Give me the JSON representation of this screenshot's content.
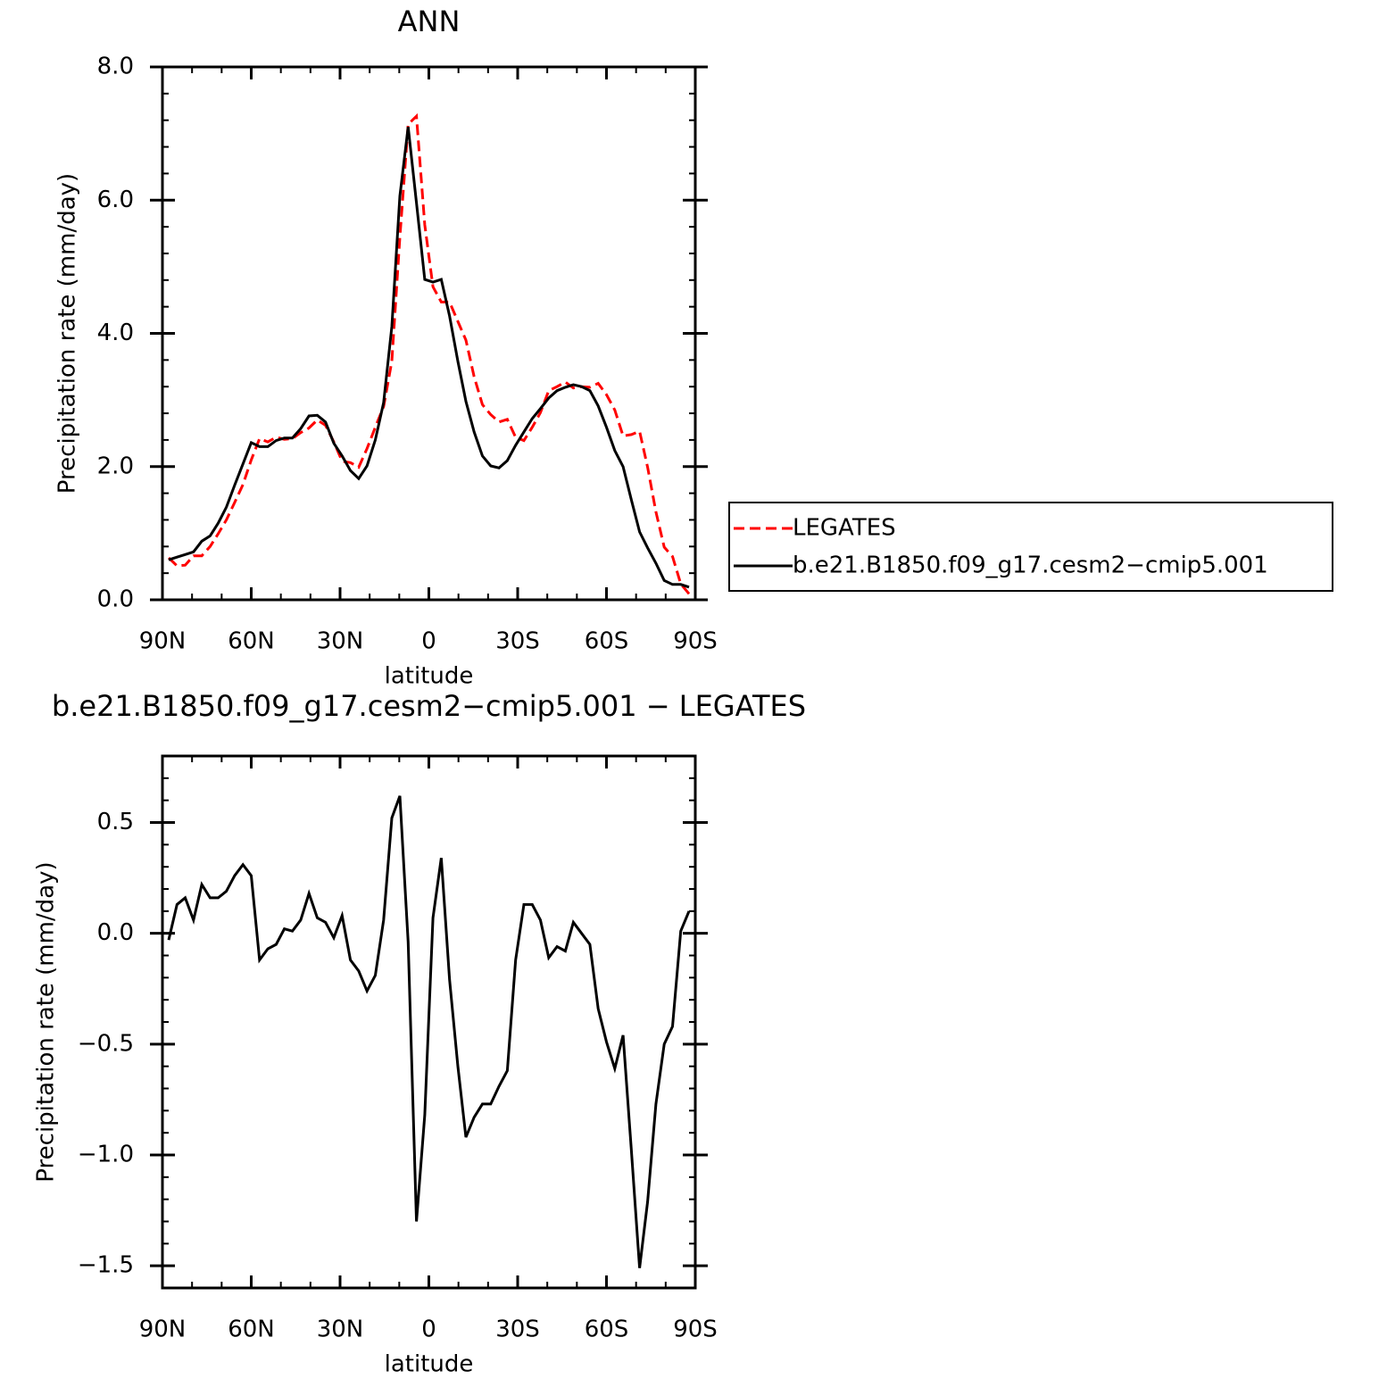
{
  "chart_data": [
    {
      "type": "line",
      "title": "ANN",
      "x_label": "latitude",
      "y_label": "Precipitation rate (mm/day)",
      "x": [
        87.9,
        85.1,
        82.3,
        79.5,
        76.7,
        73.9,
        71.2,
        68.4,
        65.6,
        62.8,
        60.0,
        57.2,
        54.4,
        51.6,
        48.8,
        46.1,
        43.3,
        40.5,
        37.7,
        34.9,
        32.1,
        29.3,
        26.5,
        23.7,
        20.9,
        18.1,
        15.3,
        12.5,
        9.8,
        7.0,
        4.2,
        1.4,
        -1.4,
        -4.2,
        -7.0,
        -9.8,
        -12.5,
        -15.3,
        -18.1,
        -20.9,
        -23.7,
        -26.5,
        -29.3,
        -32.1,
        -34.9,
        -37.7,
        -40.5,
        -43.3,
        -46.1,
        -48.8,
        -51.6,
        -54.4,
        -57.2,
        -60.0,
        -62.8,
        -65.6,
        -68.4,
        -71.2,
        -73.9,
        -76.7,
        -79.5,
        -82.3,
        -85.1,
        -87.9
      ],
      "xlim": [
        90,
        -90
      ],
      "xticks": [
        {
          "value": 90,
          "label": "90N"
        },
        {
          "value": 60,
          "label": "60N"
        },
        {
          "value": 30,
          "label": "30N"
        },
        0,
        {
          "value": -30,
          "label": "30S"
        },
        {
          "value": -60,
          "label": "60S"
        },
        {
          "value": -90,
          "label": "90S"
        }
      ],
      "ylim": [
        0,
        8
      ],
      "yticks": [
        {
          "value": 0,
          "label": "0.0"
        },
        {
          "value": 2,
          "label": "2.0"
        },
        {
          "value": 4,
          "label": "4.0"
        },
        {
          "value": 6,
          "label": "6.0"
        },
        {
          "value": 8,
          "label": "8.0"
        }
      ],
      "legend": "right",
      "series": [
        {
          "name": "LEGATES",
          "color": "#ff0000",
          "linestyle": "dashed",
          "values": [
            0.63,
            0.51,
            0.52,
            0.66,
            0.66,
            0.8,
            0.99,
            1.2,
            1.46,
            1.73,
            2.1,
            2.42,
            2.37,
            2.44,
            2.41,
            2.42,
            2.51,
            2.58,
            2.7,
            2.62,
            2.37,
            2.08,
            2.06,
            1.99,
            2.27,
            2.59,
            2.9,
            3.58,
            5.44,
            7.14,
            7.26,
            5.63,
            4.7,
            4.47,
            4.47,
            4.18,
            3.9,
            3.35,
            2.93,
            2.78,
            2.67,
            2.71,
            2.44,
            2.39,
            2.59,
            2.81,
            3.14,
            3.2,
            3.27,
            3.18,
            3.2,
            3.19,
            3.25,
            3.08,
            2.85,
            2.46,
            2.48,
            2.53,
            1.99,
            1.32,
            0.79,
            0.65,
            0.24,
            0.09
          ]
        },
        {
          "name": "b.e21.B1850.f09_g17.cesm2−cmip5.001",
          "color": "#000000",
          "linestyle": "solid",
          "values": [
            0.6,
            0.64,
            0.68,
            0.72,
            0.88,
            0.96,
            1.15,
            1.39,
            1.72,
            2.04,
            2.36,
            2.3,
            2.3,
            2.39,
            2.43,
            2.43,
            2.57,
            2.76,
            2.77,
            2.67,
            2.35,
            2.16,
            1.94,
            1.82,
            2.01,
            2.4,
            2.96,
            4.1,
            6.06,
            7.1,
            5.96,
            4.81,
            4.77,
            4.81,
            4.26,
            3.58,
            2.98,
            2.52,
            2.16,
            2.01,
            1.98,
            2.09,
            2.32,
            2.52,
            2.72,
            2.87,
            3.03,
            3.14,
            3.19,
            3.23,
            3.2,
            3.14,
            2.91,
            2.59,
            2.24,
            2.0,
            1.5,
            1.02,
            0.78,
            0.55,
            0.29,
            0.23,
            0.23,
            0.19
          ]
        }
      ]
    },
    {
      "type": "line",
      "title": "b.e21.B1850.f09_g17.cesm2−cmip5.001  −  LEGATES",
      "x_label": "latitude",
      "y_label": "Precipitation rate (mm/day)",
      "x": [
        87.9,
        85.1,
        82.3,
        79.5,
        76.7,
        73.9,
        71.2,
        68.4,
        65.6,
        62.8,
        60.0,
        57.2,
        54.4,
        51.6,
        48.8,
        46.1,
        43.3,
        40.5,
        37.7,
        34.9,
        32.1,
        29.3,
        26.5,
        23.7,
        20.9,
        18.1,
        15.3,
        12.5,
        9.8,
        7.0,
        4.2,
        1.4,
        -1.4,
        -4.2,
        -7.0,
        -9.8,
        -12.5,
        -15.3,
        -18.1,
        -20.9,
        -23.7,
        -26.5,
        -29.3,
        -32.1,
        -34.9,
        -37.7,
        -40.5,
        -43.3,
        -46.1,
        -48.8,
        -51.6,
        -54.4,
        -57.2,
        -60.0,
        -62.8,
        -65.6,
        -68.4,
        -71.2,
        -73.9,
        -76.7,
        -79.5,
        -82.3,
        -85.1,
        -87.9
      ],
      "xlim": [
        90,
        -90
      ],
      "xticks": [
        {
          "value": 90,
          "label": "90N"
        },
        {
          "value": 60,
          "label": "60N"
        },
        {
          "value": 30,
          "label": "30N"
        },
        0,
        {
          "value": -30,
          "label": "30S"
        },
        {
          "value": -60,
          "label": "60S"
        },
        {
          "value": -90,
          "label": "90S"
        }
      ],
      "ylim": [
        -1.6,
        0.8
      ],
      "yticks": [
        {
          "value": -1.5,
          "label": "−1.5"
        },
        {
          "value": -1,
          "label": "−1.0"
        },
        {
          "value": -0.5,
          "label": "−0.5"
        },
        {
          "value": 0,
          "label": "0.0"
        },
        0.5
      ],
      "series": [
        {
          "color": "#000000",
          "linestyle": "solid",
          "values": [
            -0.03,
            0.13,
            0.16,
            0.06,
            0.22,
            0.16,
            0.16,
            0.19,
            0.26,
            0.31,
            0.26,
            -0.12,
            -0.07,
            -0.05,
            0.02,
            0.01,
            0.06,
            0.18,
            0.07,
            0.05,
            -0.02,
            0.08,
            -0.12,
            -0.17,
            -0.26,
            -0.19,
            0.06,
            0.52,
            0.62,
            -0.04,
            -1.3,
            -0.82,
            0.07,
            0.34,
            -0.21,
            -0.6,
            -0.92,
            -0.83,
            -0.77,
            -0.77,
            -0.69,
            -0.62,
            -0.12,
            0.13,
            0.13,
            0.06,
            -0.11,
            -0.06,
            -0.08,
            0.05,
            0.0,
            -0.05,
            -0.34,
            -0.49,
            -0.61,
            -0.46,
            -0.98,
            -1.51,
            -1.21,
            -0.77,
            -0.5,
            -0.42,
            0.01,
            0.1
          ]
        }
      ]
    }
  ]
}
